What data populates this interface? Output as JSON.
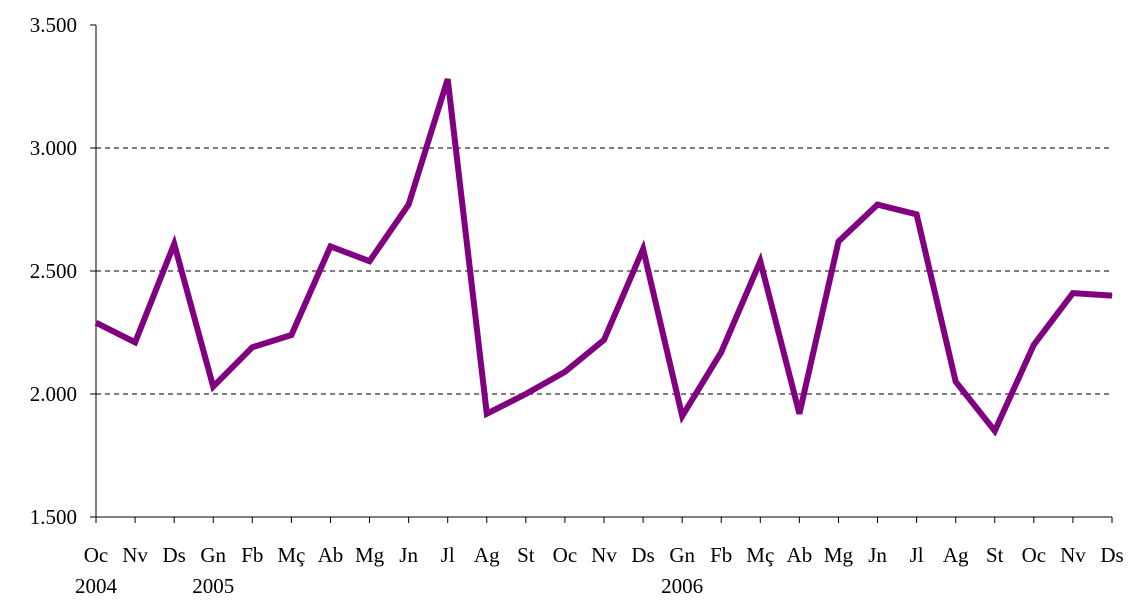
{
  "chart_data": {
    "type": "line",
    "categories": [
      "Oc",
      "Nv",
      "Ds",
      "Gn",
      "Fb",
      "Mç",
      "Ab",
      "Mg",
      "Jn",
      "Jl",
      "Ag",
      "St",
      "Oc",
      "Nv",
      "Ds",
      "Gn",
      "Fb",
      "Mç",
      "Ab",
      "Mg",
      "Jn",
      "Jl",
      "Ag",
      "St",
      "Oc",
      "Nv",
      "Ds"
    ],
    "year_labels": [
      {
        "category_index": 0,
        "label": "2004"
      },
      {
        "category_index": 3,
        "label": "2005"
      },
      {
        "category_index": 15,
        "label": "2006"
      }
    ],
    "series": [
      {
        "color": "#800080",
        "values": [
          2290,
          2210,
          2610,
          2030,
          2190,
          2240,
          2600,
          2540,
          2770,
          3280,
          1920,
          2000,
          2090,
          2220,
          2590,
          1910,
          2170,
          2540,
          1920,
          2620,
          2770,
          2730,
          2050,
          1850,
          2200,
          2410,
          2400
        ]
      }
    ],
    "ylim": [
      1500,
      3500
    ],
    "yticks": [
      1500,
      2000,
      2500,
      3000,
      3500
    ],
    "ytick_labels": [
      "1.500",
      "2.000",
      "2.500",
      "3.000",
      "3.500"
    ],
    "grid": "horizontal dashed at 2.000, 2.500, 3.000",
    "title": "",
    "xlabel": "",
    "ylabel": ""
  }
}
